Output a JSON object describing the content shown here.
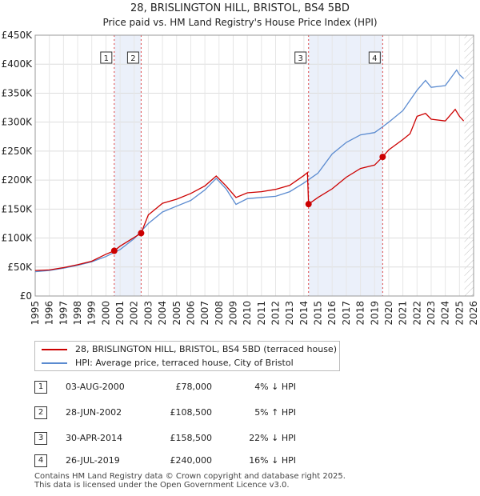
{
  "chart_data": {
    "type": "line",
    "title": "28, BRISLINGTON HILL, BRISTOL, BS4 5BD",
    "subtitle": "Price paid vs. HM Land Registry's House Price Index (HPI)",
    "xlim": [
      1995,
      2026
    ],
    "ylim": [
      0,
      450000
    ],
    "x_ticks": [
      1995,
      1996,
      1997,
      1998,
      1999,
      2000,
      2001,
      2002,
      2003,
      2004,
      2005,
      2006,
      2007,
      2008,
      2009,
      2010,
      2011,
      2012,
      2013,
      2014,
      2015,
      2016,
      2017,
      2018,
      2019,
      2020,
      2021,
      2022,
      2023,
      2024,
      2025,
      2026
    ],
    "y_ticks": [
      {
        "value": 0,
        "label": "£0"
      },
      {
        "value": 50000,
        "label": "£50K"
      },
      {
        "value": 100000,
        "label": "£100K"
      },
      {
        "value": 150000,
        "label": "£150K"
      },
      {
        "value": 200000,
        "label": "£200K"
      },
      {
        "value": 250000,
        "label": "£250K"
      },
      {
        "value": 300000,
        "label": "£300K"
      },
      {
        "value": 350000,
        "label": "£350K"
      },
      {
        "value": 400000,
        "label": "£400K"
      },
      {
        "value": 450000,
        "label": "£450K"
      }
    ],
    "grid": true,
    "sale_highlight_bands": [
      [
        2000.59,
        2002.49
      ],
      [
        2014.33,
        2019.57
      ]
    ],
    "series": [
      {
        "name": "28, BRISLINGTON HILL, BRISTOL, BS4 5BD (terraced house)",
        "color": "#cc0000",
        "points": [
          [
            1995,
            44000
          ],
          [
            1996,
            45000
          ],
          [
            1997,
            49000
          ],
          [
            1998,
            54000
          ],
          [
            1999,
            60000
          ],
          [
            2000,
            72000
          ],
          [
            2000.59,
            78000
          ],
          [
            2001,
            86000
          ],
          [
            2002,
            101000
          ],
          [
            2002.49,
            108500
          ],
          [
            2003,
            140000
          ],
          [
            2004,
            160000
          ],
          [
            2005,
            167000
          ],
          [
            2006,
            177000
          ],
          [
            2007,
            190000
          ],
          [
            2007.8,
            207000
          ],
          [
            2008.5,
            190000
          ],
          [
            2009.2,
            170000
          ],
          [
            2010,
            178000
          ],
          [
            2011,
            180000
          ],
          [
            2012,
            184000
          ],
          [
            2013,
            191000
          ],
          [
            2014,
            208000
          ],
          [
            2014.25,
            213000
          ],
          [
            2014.33,
            158500
          ],
          [
            2015,
            170000
          ],
          [
            2016,
            185000
          ],
          [
            2017,
            205000
          ],
          [
            2018,
            220000
          ],
          [
            2019,
            226000
          ],
          [
            2019.57,
            240000
          ],
          [
            2020,
            252000
          ],
          [
            2021,
            270000
          ],
          [
            2021.5,
            280000
          ],
          [
            2022,
            310000
          ],
          [
            2022.6,
            315000
          ],
          [
            2023,
            305000
          ],
          [
            2024,
            302000
          ],
          [
            2024.7,
            322000
          ],
          [
            2025,
            310000
          ],
          [
            2025.3,
            302000
          ]
        ]
      },
      {
        "name": "HPI: Average price, terraced house, City of Bristol",
        "color": "#5b8bd0",
        "points": [
          [
            1995,
            42000
          ],
          [
            1996,
            44000
          ],
          [
            1997,
            48000
          ],
          [
            1998,
            53000
          ],
          [
            1999,
            59000
          ],
          [
            2000,
            68000
          ],
          [
            2001,
            80000
          ],
          [
            2002,
            99000
          ],
          [
            2003,
            125000
          ],
          [
            2004,
            145000
          ],
          [
            2005,
            155000
          ],
          [
            2006,
            165000
          ],
          [
            2007,
            183000
          ],
          [
            2007.8,
            203000
          ],
          [
            2008.5,
            185000
          ],
          [
            2009.2,
            158000
          ],
          [
            2010,
            168000
          ],
          [
            2011,
            170000
          ],
          [
            2012,
            172000
          ],
          [
            2013,
            180000
          ],
          [
            2014,
            195000
          ],
          [
            2015,
            212000
          ],
          [
            2016,
            245000
          ],
          [
            2017,
            265000
          ],
          [
            2018,
            278000
          ],
          [
            2019,
            282000
          ],
          [
            2019.57,
            292000
          ],
          [
            2020,
            300000
          ],
          [
            2021,
            320000
          ],
          [
            2022,
            355000
          ],
          [
            2022.6,
            372000
          ],
          [
            2023,
            360000
          ],
          [
            2024,
            363000
          ],
          [
            2024.8,
            390000
          ],
          [
            2025,
            382000
          ],
          [
            2025.3,
            375000
          ]
        ]
      }
    ],
    "sales": [
      {
        "marker": "1",
        "x": 2000.59,
        "y": 78000
      },
      {
        "marker": "2",
        "x": 2002.49,
        "y": 108500
      },
      {
        "marker": "3",
        "x": 2014.33,
        "y": 158500
      },
      {
        "marker": "4",
        "x": 2019.57,
        "y": 240000
      }
    ]
  },
  "legend": {
    "property_label": "28, BRISLINGTON HILL, BRISTOL, BS4 5BD (terraced house)",
    "hpi_label": "HPI: Average price, terraced house, City of Bristol"
  },
  "sales_table": [
    {
      "marker": "1",
      "date": "03-AUG-2000",
      "price": "£78,000",
      "delta": "4% ↓ HPI"
    },
    {
      "marker": "2",
      "date": "28-JUN-2002",
      "price": "£108,500",
      "delta": "5% ↑ HPI"
    },
    {
      "marker": "3",
      "date": "30-APR-2014",
      "price": "£158,500",
      "delta": "22% ↓ HPI"
    },
    {
      "marker": "4",
      "date": "26-JUL-2019",
      "price": "£240,000",
      "delta": "16% ↓ HPI"
    }
  ],
  "footer": {
    "line1": "Contains HM Land Registry data © Crown copyright and database right 2025.",
    "line2": "This data is licensed under the Open Government Licence v3.0."
  },
  "colors": {
    "property": "#cc0000",
    "hpi": "#5b8bd0",
    "band": "#dde6f7"
  }
}
